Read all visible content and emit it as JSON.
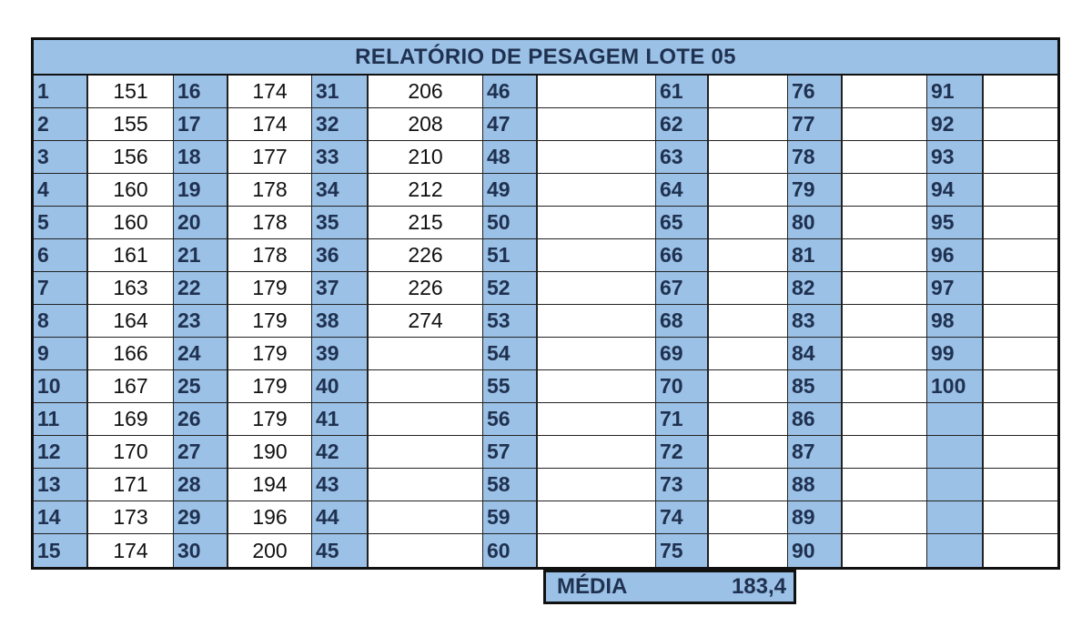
{
  "title": "RELATÓRIO DE PESAGEM LOTE 05",
  "columns": [
    {
      "indices": [
        "1",
        "2",
        "3",
        "4",
        "5",
        "6",
        "7",
        "8",
        "9",
        "10",
        "11",
        "12",
        "13",
        "14",
        "15"
      ],
      "values": [
        "151",
        "155",
        "156",
        "160",
        "160",
        "161",
        "163",
        "164",
        "166",
        "167",
        "169",
        "170",
        "171",
        "173",
        "174"
      ]
    },
    {
      "indices": [
        "16",
        "17",
        "18",
        "19",
        "20",
        "21",
        "22",
        "23",
        "24",
        "25",
        "26",
        "27",
        "28",
        "29",
        "30"
      ],
      "values": [
        "174",
        "174",
        "177",
        "178",
        "178",
        "178",
        "179",
        "179",
        "179",
        "179",
        "179",
        "190",
        "194",
        "196",
        "200"
      ]
    },
    {
      "indices": [
        "31",
        "32",
        "33",
        "34",
        "35",
        "36",
        "37",
        "38",
        "39",
        "40",
        "41",
        "42",
        "43",
        "44",
        "45"
      ],
      "values": [
        "206",
        "208",
        "210",
        "212",
        "215",
        "226",
        "226",
        "274",
        "",
        "",
        "",
        "",
        "",
        "",
        ""
      ]
    },
    {
      "indices": [
        "46",
        "47",
        "48",
        "49",
        "50",
        "51",
        "52",
        "53",
        "54",
        "55",
        "56",
        "57",
        "58",
        "59",
        "60"
      ],
      "values": [
        "",
        "",
        "",
        "",
        "",
        "",
        "",
        "",
        "",
        "",
        "",
        "",
        "",
        "",
        ""
      ]
    },
    {
      "indices": [
        "61",
        "62",
        "63",
        "64",
        "65",
        "66",
        "67",
        "68",
        "69",
        "70",
        "71",
        "72",
        "73",
        "74",
        "75"
      ],
      "values": [
        "",
        "",
        "",
        "",
        "",
        "",
        "",
        "",
        "",
        "",
        "",
        "",
        "",
        "",
        ""
      ]
    },
    {
      "indices": [
        "76",
        "77",
        "78",
        "79",
        "80",
        "81",
        "82",
        "83",
        "84",
        "85",
        "86",
        "87",
        "88",
        "89",
        "90"
      ],
      "values": [
        "",
        "",
        "",
        "",
        "",
        "",
        "",
        "",
        "",
        "",
        "",
        "",
        "",
        "",
        ""
      ]
    },
    {
      "indices": [
        "91",
        "92",
        "93",
        "94",
        "95",
        "96",
        "97",
        "98",
        "99",
        "100",
        "",
        "",
        "",
        "",
        ""
      ],
      "values": [
        "",
        "",
        "",
        "",
        "",
        "",
        "",
        "",
        "",
        "",
        "",
        "",
        "",
        "",
        ""
      ]
    }
  ],
  "summary": {
    "label": "MÉDIA",
    "value": "183,4"
  },
  "colors": {
    "header_fill": "#9cc1e6",
    "header_text": "#1f3150"
  }
}
